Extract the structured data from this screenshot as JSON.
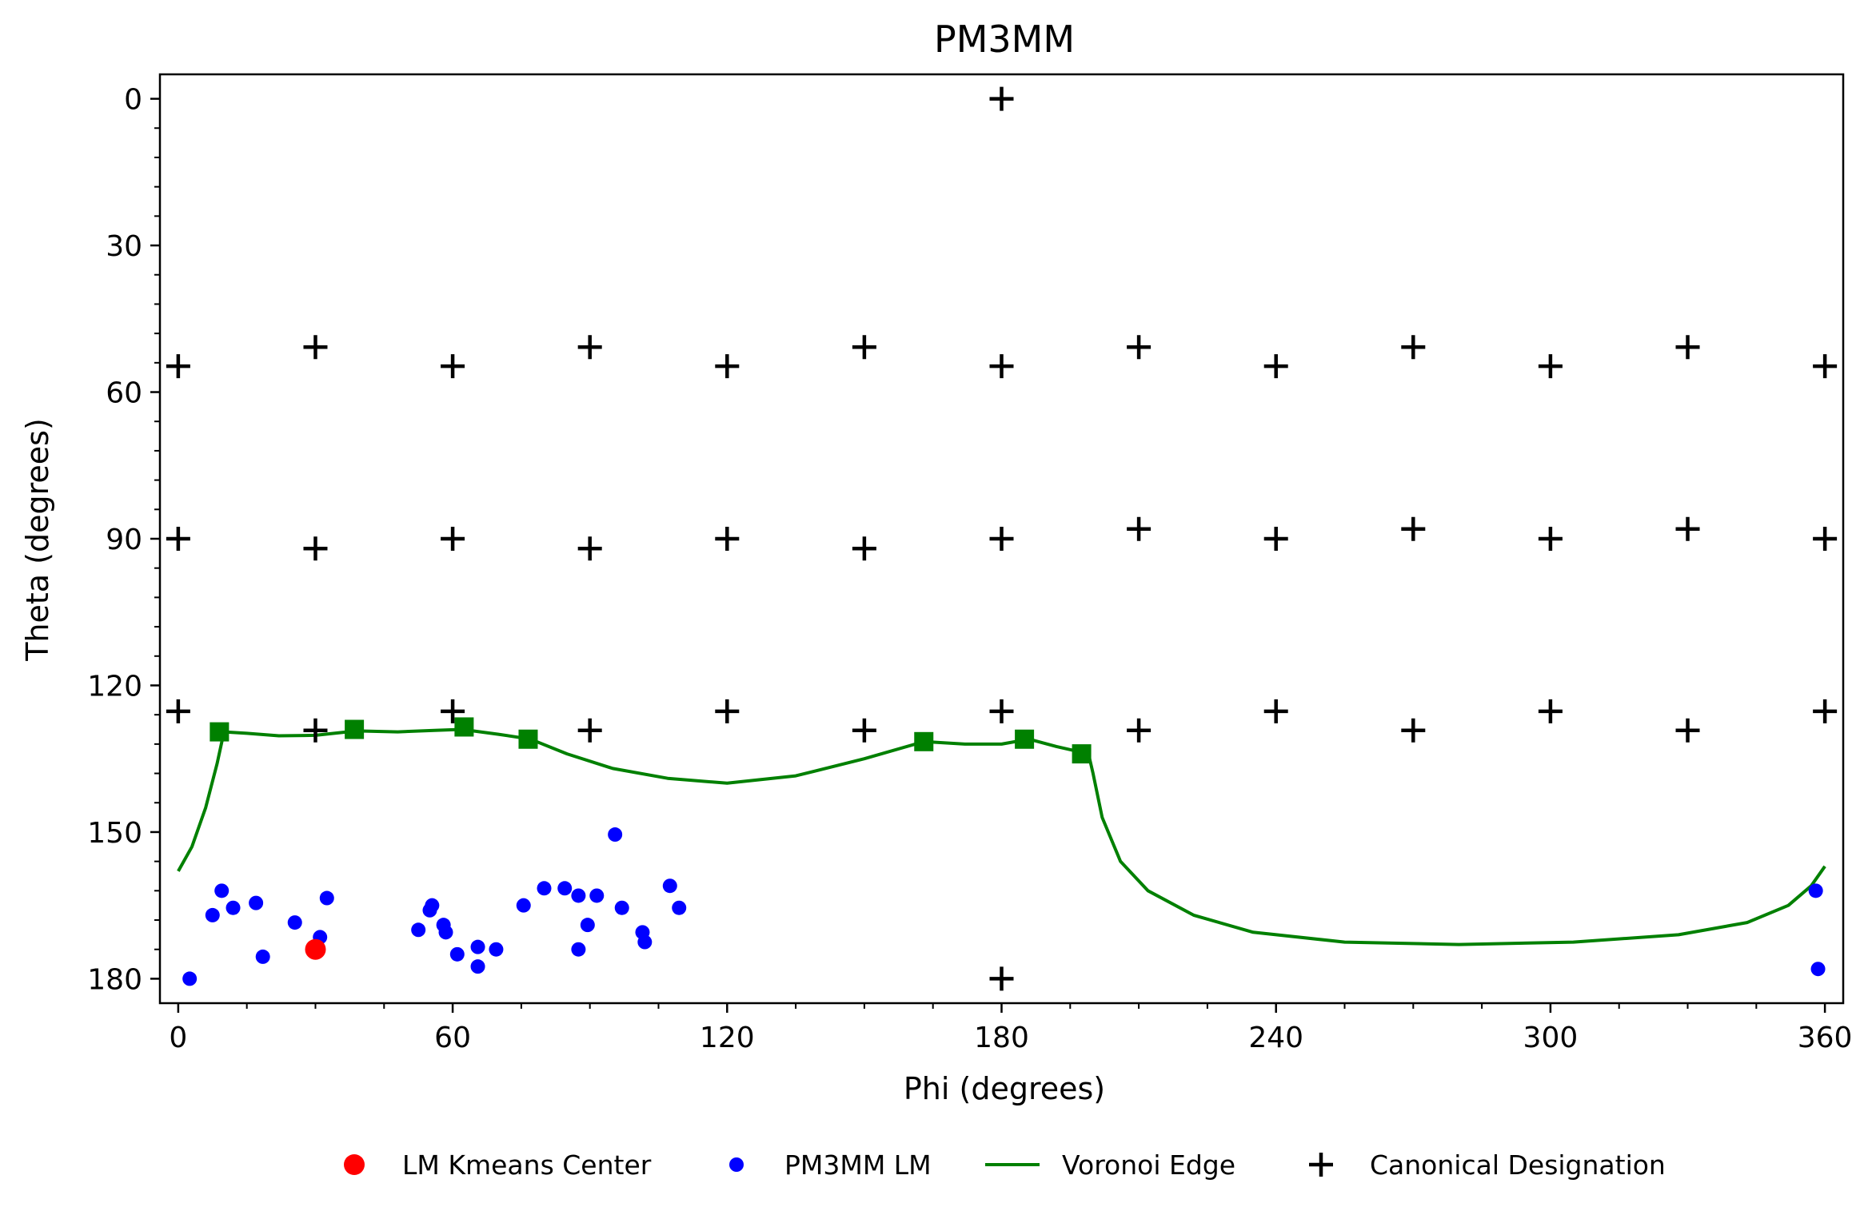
{
  "chart_data": {
    "type": "scatter",
    "title": "PM3MM",
    "xlabel": "Phi (degrees)",
    "ylabel": "Theta (degrees)",
    "xlim": [
      -4,
      364
    ],
    "ylim": [
      185,
      -5
    ],
    "y_inverted": true,
    "x_ticks": [
      0,
      60,
      120,
      180,
      240,
      300,
      360
    ],
    "x_tick_labels": [
      "0",
      "60",
      "120",
      "180",
      "240",
      "300",
      "360"
    ],
    "y_ticks": [
      0,
      30,
      60,
      90,
      120,
      150,
      180
    ],
    "y_tick_labels": [
      "0",
      "30",
      "60",
      "90",
      "120",
      "150",
      "180"
    ],
    "grid": false,
    "legend_position": "bottom-center",
    "series": [
      {
        "name": "LM Kmeans Center",
        "kind": "points",
        "color": "#ff0000",
        "points": [
          [
            30,
            174
          ]
        ]
      },
      {
        "name": "PM3MM LM",
        "kind": "points",
        "color": "#0000ff",
        "points": [
          [
            2.5,
            180
          ],
          [
            7.5,
            167
          ],
          [
            9.5,
            162
          ],
          [
            12,
            165.5
          ],
          [
            17,
            164.5
          ],
          [
            18.5,
            175.5
          ],
          [
            25.5,
            168.5
          ],
          [
            31,
            171.5
          ],
          [
            32.5,
            163.5
          ],
          [
            52.5,
            170
          ],
          [
            55,
            166
          ],
          [
            55.5,
            165
          ],
          [
            58,
            169
          ],
          [
            58.5,
            170.5
          ],
          [
            61,
            175
          ],
          [
            65.5,
            173.5
          ],
          [
            65.5,
            177.5
          ],
          [
            69.5,
            174
          ],
          [
            75.5,
            165
          ],
          [
            80,
            161.5
          ],
          [
            84.5,
            161.5
          ],
          [
            87.5,
            174
          ],
          [
            87.5,
            163
          ],
          [
            89.5,
            169
          ],
          [
            91.5,
            163
          ],
          [
            95.5,
            150.5
          ],
          [
            97,
            165.5
          ],
          [
            101.5,
            170.5
          ],
          [
            102,
            172.5
          ],
          [
            107.5,
            161
          ],
          [
            109.5,
            165.5
          ],
          [
            358,
            162
          ],
          [
            358.5,
            178
          ]
        ]
      },
      {
        "name": "Voronoi Edge",
        "kind": "line",
        "color": "#008000",
        "points": [
          [
            0,
            158
          ],
          [
            3,
            153
          ],
          [
            6,
            145
          ],
          [
            8.5,
            136
          ],
          [
            10,
            129.5
          ],
          [
            15,
            129.8
          ],
          [
            22,
            130.3
          ],
          [
            30,
            130.2
          ],
          [
            39,
            129.3
          ],
          [
            48,
            129.5
          ],
          [
            56,
            129.2
          ],
          [
            62,
            129
          ],
          [
            70,
            130
          ],
          [
            77,
            131
          ],
          [
            85,
            134
          ],
          [
            95,
            137
          ],
          [
            107,
            139
          ],
          [
            120,
            140
          ],
          [
            135,
            138.5
          ],
          [
            150,
            135
          ],
          [
            163,
            131.5
          ],
          [
            172,
            132
          ],
          [
            180,
            132
          ],
          [
            186,
            131
          ],
          [
            192,
            132.5
          ],
          [
            199,
            134
          ],
          [
            200,
            138
          ],
          [
            202,
            147
          ],
          [
            206,
            156
          ],
          [
            212,
            162
          ],
          [
            222,
            167
          ],
          [
            235,
            170.5
          ],
          [
            255,
            172.5
          ],
          [
            280,
            173
          ],
          [
            305,
            172.5
          ],
          [
            328,
            171
          ],
          [
            343,
            168.5
          ],
          [
            352,
            165
          ],
          [
            357,
            161
          ],
          [
            360,
            157
          ]
        ],
        "vertices": [
          [
            9,
            129.5
          ],
          [
            38.5,
            129
          ],
          [
            62.5,
            128.5
          ],
          [
            76.5,
            131
          ],
          [
            163,
            131.5
          ],
          [
            185,
            131
          ],
          [
            197.5,
            134
          ]
        ]
      },
      {
        "name": "Canonical Designation",
        "kind": "points",
        "color": "#000000",
        "points": [
          [
            180,
            0
          ],
          [
            0,
            54.7
          ],
          [
            30,
            50.8
          ],
          [
            60,
            54.7
          ],
          [
            90,
            50.8
          ],
          [
            120,
            54.7
          ],
          [
            150,
            50.8
          ],
          [
            180,
            54.7
          ],
          [
            210,
            50.8
          ],
          [
            240,
            54.7
          ],
          [
            270,
            50.8
          ],
          [
            300,
            54.7
          ],
          [
            330,
            50.8
          ],
          [
            360,
            54.7
          ],
          [
            0,
            90
          ],
          [
            30,
            92
          ],
          [
            60,
            90
          ],
          [
            90,
            92
          ],
          [
            120,
            90
          ],
          [
            150,
            92
          ],
          [
            180,
            90
          ],
          [
            210,
            88
          ],
          [
            240,
            90
          ],
          [
            270,
            88
          ],
          [
            300,
            90
          ],
          [
            330,
            88
          ],
          [
            360,
            90
          ],
          [
            0,
            125.3
          ],
          [
            30,
            129.2
          ],
          [
            60,
            125.3
          ],
          [
            90,
            129.2
          ],
          [
            120,
            125.3
          ],
          [
            150,
            129.2
          ],
          [
            180,
            125.3
          ],
          [
            210,
            129.2
          ],
          [
            240,
            125.3
          ],
          [
            270,
            129.2
          ],
          [
            300,
            125.3
          ],
          [
            330,
            129.2
          ],
          [
            360,
            125.3
          ],
          [
            180,
            180
          ]
        ]
      }
    ]
  }
}
